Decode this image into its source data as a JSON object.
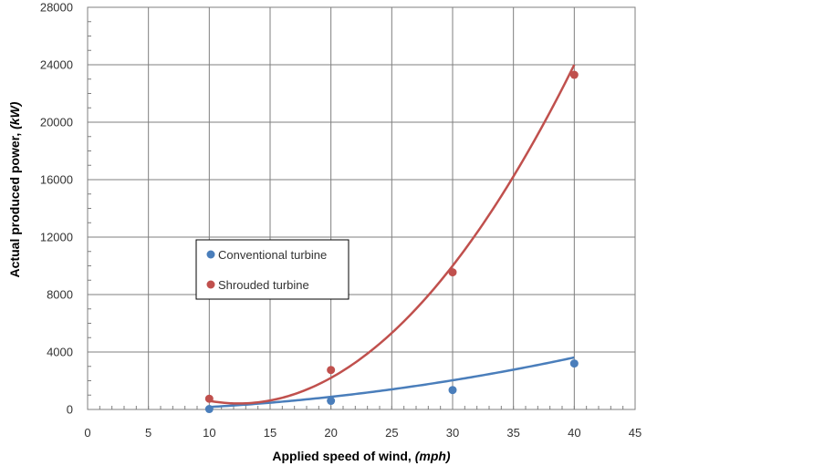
{
  "chart_data": {
    "type": "scatter",
    "title": "",
    "xlabel": "Applied speed of wind, ",
    "xlabel_unit": "(mph)",
    "ylabel": "Actual produced power, ",
    "ylabel_unit": "(kW)",
    "xlim": [
      0,
      45
    ],
    "ylim": [
      0,
      28000
    ],
    "x_ticks": [
      0,
      5,
      10,
      15,
      20,
      25,
      30,
      35,
      40,
      45
    ],
    "y_ticks": [
      0,
      4000,
      8000,
      12000,
      16000,
      20000,
      24000,
      28000
    ],
    "grid": true,
    "legend_position": "center-left",
    "trendline": "polynomial-2",
    "series": [
      {
        "name": "Conventional turbine",
        "color": "#4a7ebb",
        "x": [
          10,
          20,
          30,
          40
        ],
        "y": [
          30,
          600,
          1350,
          3200
        ],
        "trend_coeffs": [
          -100,
          5,
          2.2
        ]
      },
      {
        "name": "Shrouded turbine",
        "color": "#c0504d",
        "x": [
          10,
          20,
          30,
          40
        ],
        "y": [
          750,
          2750,
          9550,
          23300
        ],
        "trend_coeffs": [
          5200,
          -770,
          31
        ]
      }
    ]
  }
}
